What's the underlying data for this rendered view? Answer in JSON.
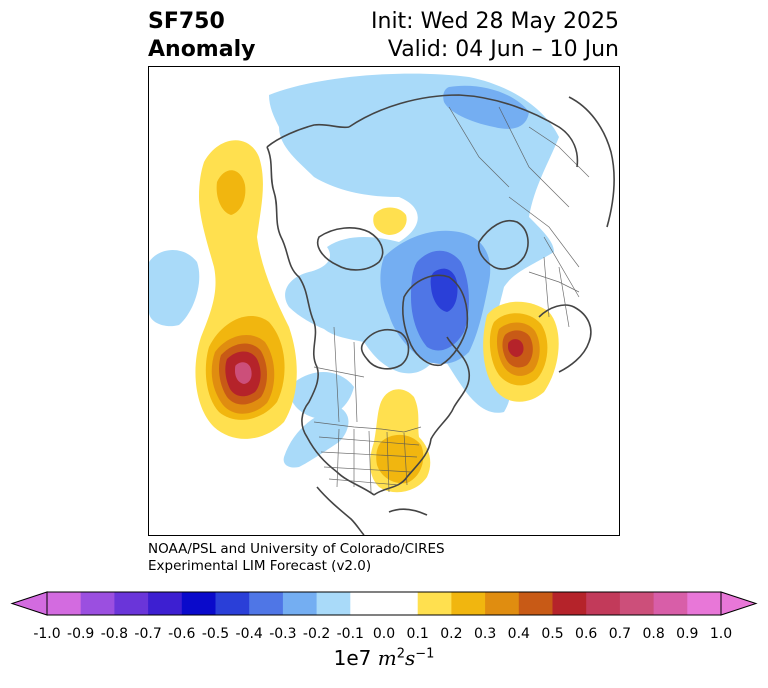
{
  "title": {
    "variable": "SF750",
    "subtitle": "Anomaly",
    "init": "Init: Wed 28 May 2025",
    "valid": "Valid: 04 Jun – 10 Jun"
  },
  "credit": {
    "line1": "NOAA/PSL and University of Colorado/CIRES",
    "line2": "Experimental LIM Forecast (v2.0)"
  },
  "colorbar": {
    "ticks": [
      "-1.0",
      "-0.9",
      "-0.8",
      "-0.7",
      "-0.6",
      "-0.5",
      "-0.4",
      "-0.3",
      "-0.2",
      "-0.1",
      "0.0",
      "0.1",
      "0.2",
      "0.3",
      "0.4",
      "0.5",
      "0.6",
      "0.7",
      "0.8",
      "0.9",
      "1.0"
    ],
    "colors": [
      "#d36be0",
      "#9b4fe0",
      "#6a35d9",
      "#3d1fd1",
      "#0a0acb",
      "#2a3fd8",
      "#4f76e6",
      "#74aef2",
      "#a9daf9",
      "#ffffff",
      "#ffffff",
      "#ffe04f",
      "#f1b60f",
      "#e08d10",
      "#c85a16",
      "#b5232a",
      "#c23a5a",
      "#cc4f7a",
      "#d85ea8",
      "#e877d8"
    ],
    "extend_low_color": "#d36be0",
    "extend_high_color": "#e877d8",
    "unit_base": "1e7",
    "unit_expr": "m",
    "unit_exp1": "2",
    "unit_s": "s",
    "unit_exp2": "−1"
  },
  "map": {
    "projection": "polar-stereographic",
    "region": "North America / North Atlantic / Arctic",
    "field": "750 hPa streamfunction anomaly"
  }
}
